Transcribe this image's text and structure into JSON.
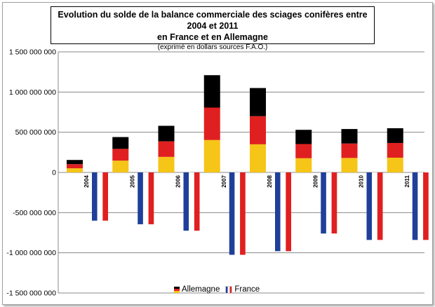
{
  "title_line1": "Evolution du solde de la balance commerciale des sciages conifères entre 2004 et 2011",
  "title_line2": "en France et en Allemagne",
  "subtitle": "(exprimé en dollars sources F.A.O.)",
  "chart_data": {
    "type": "bar",
    "title": "Evolution du solde de la balance commerciale des sciages conifères entre 2004 et 2011 en France et en Allemagne",
    "subtitle": "(exprimé en dollars sources F.A.O.)",
    "categories": [
      "2004",
      "2005",
      "2006",
      "2007",
      "2008",
      "2009",
      "2010",
      "2011"
    ],
    "y_ticks": [
      "1 500 000 000",
      "1 000 000 000",
      "500 000 000",
      "0",
      "-500 000 000",
      "-1 000 000 000",
      "-1 500 000 000"
    ],
    "y_tick_values": [
      1500000000,
      1000000000,
      500000000,
      0,
      -500000000,
      -1000000000,
      -1500000000
    ],
    "ylim": [
      -1500000000,
      1500000000
    ],
    "grid": true,
    "legend_position": "bottom",
    "series": [
      {
        "name": "Allemagne",
        "values": [
          155000000,
          440000000,
          580000000,
          1210000000,
          1050000000,
          530000000,
          540000000,
          550000000
        ],
        "colors": [
          "#f5c518",
          "#e02020",
          "#000000"
        ]
      },
      {
        "name": "France",
        "values": [
          -600000000,
          -645000000,
          -725000000,
          -1025000000,
          -980000000,
          -760000000,
          -840000000,
          -840000000
        ],
        "colors": [
          "#1f3f99",
          "#ffffff",
          "#e02020"
        ]
      }
    ]
  }
}
